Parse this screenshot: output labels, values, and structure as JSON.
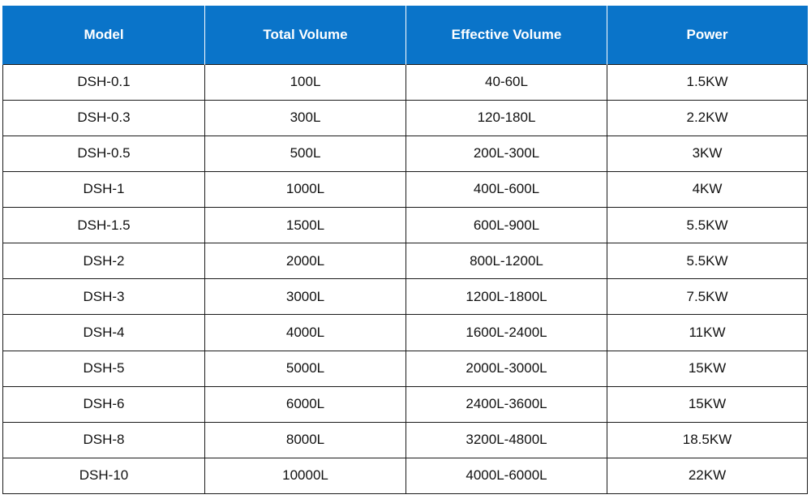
{
  "table": {
    "headers": [
      "Model",
      "Total Volume",
      "Effective Volume",
      "Power"
    ],
    "rows": [
      [
        "DSH-0.1",
        "100L",
        "40-60L",
        "1.5KW"
      ],
      [
        "DSH-0.3",
        "300L",
        "120-180L",
        "2.2KW"
      ],
      [
        "DSH-0.5",
        "500L",
        "200L-300L",
        "3KW"
      ],
      [
        "DSH-1",
        "1000L",
        "400L-600L",
        "4KW"
      ],
      [
        "DSH-1.5",
        "1500L",
        "600L-900L",
        "5.5KW"
      ],
      [
        "DSH-2",
        "2000L",
        "800L-1200L",
        "5.5KW"
      ],
      [
        "DSH-3",
        "3000L",
        "1200L-1800L",
        "7.5KW"
      ],
      [
        "DSH-4",
        "4000L",
        "1600L-2400L",
        "11KW"
      ],
      [
        "DSH-5",
        "5000L",
        "2000L-3000L",
        "15KW"
      ],
      [
        "DSH-6",
        "6000L",
        "2400L-3600L",
        "15KW"
      ],
      [
        "DSH-8",
        "8000L",
        "3200L-4800L",
        "18.5KW"
      ],
      [
        "DSH-10",
        "10000L",
        "4000L-6000L",
        "22KW"
      ]
    ]
  },
  "colors": {
    "header_background": "#0a74c9",
    "header_text": "#ffffff",
    "cell_text": "#111111",
    "border": "#1a1a1a"
  }
}
